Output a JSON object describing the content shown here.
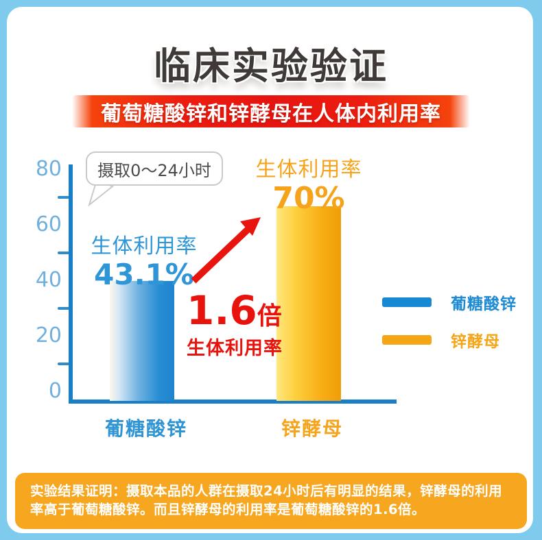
{
  "page": {
    "title": "临床实验验证",
    "banner": "葡萄糖酸锌和锌酵母在人体内利用率"
  },
  "chart_data": {
    "type": "bar",
    "title": "葡萄糖酸锌和锌酵母在人体内利用率",
    "categories": [
      "葡糖酸锌",
      "锌酵母"
    ],
    "values": [
      43.1,
      70
    ],
    "unit": "%",
    "ylim": [
      0,
      80
    ],
    "yticks": [
      80,
      60,
      40,
      20,
      0
    ],
    "grid": false,
    "legend_position": "right",
    "bar_colors": [
      "#2a8ed5",
      "#f8ad15"
    ],
    "annotation_bubble": "摄取0～24小时",
    "bar_labels": [
      {
        "title": "生体利用率",
        "value": "43.1%"
      },
      {
        "title": "生体利用率",
        "value": "70%"
      }
    ],
    "ratio_callout": {
      "value": "1.6",
      "suffix": "倍",
      "caption": "生体利用率"
    },
    "legend": [
      {
        "label": "葡糖酸锌",
        "color": "#1789d3"
      },
      {
        "label": "锌酵母",
        "color": "#f5a515"
      }
    ]
  },
  "colors": {
    "frame": "#7ecbee",
    "banner_red": "#e61410",
    "axis_blue": "#1a7ec6",
    "red_accent": "#e8130d"
  },
  "footer": {
    "text": "实验结果证明：摄取本品的人群在摄取24小时后有明显的结果，锌酵母的利用率高于葡萄糖酸锌。而且锌酵母的利用率是葡萄糖酸锌的1.6倍。"
  }
}
